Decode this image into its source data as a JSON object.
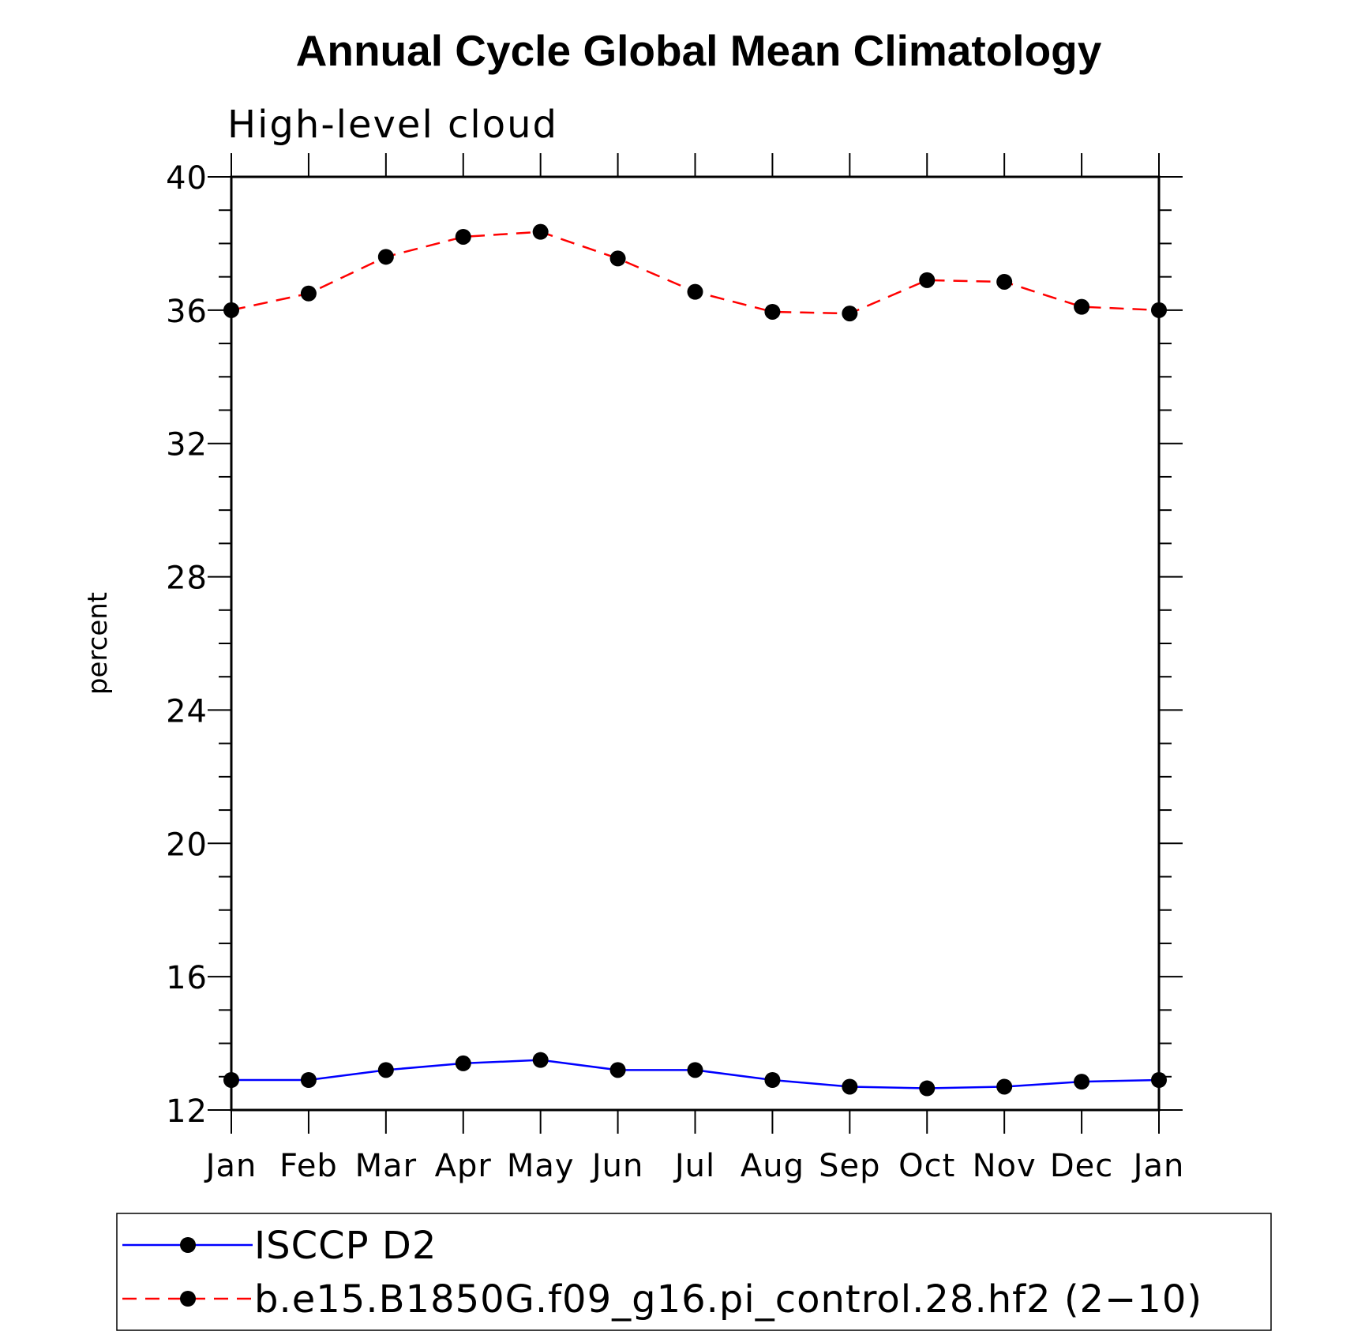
{
  "chart_data": {
    "type": "line",
    "title": "Annual Cycle Global Mean Climatology",
    "subtitle": "High-level cloud",
    "xlabel": "",
    "ylabel": "percent",
    "categories": [
      "Jan",
      "Feb",
      "Mar",
      "Apr",
      "May",
      "Jun",
      "Jul",
      "Aug",
      "Sep",
      "Oct",
      "Nov",
      "Dec",
      "Jan"
    ],
    "ylim": [
      12,
      40
    ],
    "yticks": [
      12,
      16,
      20,
      24,
      28,
      32,
      36,
      40
    ],
    "grid": false,
    "legend_position": "bottom",
    "series": [
      {
        "name": "ISCCP D2",
        "color": "#0000ff",
        "line_style": "solid",
        "marker": "filled-circle",
        "values": [
          12.9,
          12.9,
          13.2,
          13.4,
          13.5,
          13.2,
          13.2,
          12.9,
          12.7,
          12.65,
          12.7,
          12.85,
          12.9
        ]
      },
      {
        "name": "b.e15.B1850G.f09_g16.pi_control.28.hf2 (2−10)",
        "color": "#ff0000",
        "line_style": "dashed",
        "marker": "filled-circle",
        "values": [
          36.0,
          36.5,
          37.6,
          38.2,
          38.35,
          37.55,
          36.55,
          35.95,
          35.9,
          36.9,
          36.85,
          36.1,
          36.0
        ]
      }
    ]
  }
}
